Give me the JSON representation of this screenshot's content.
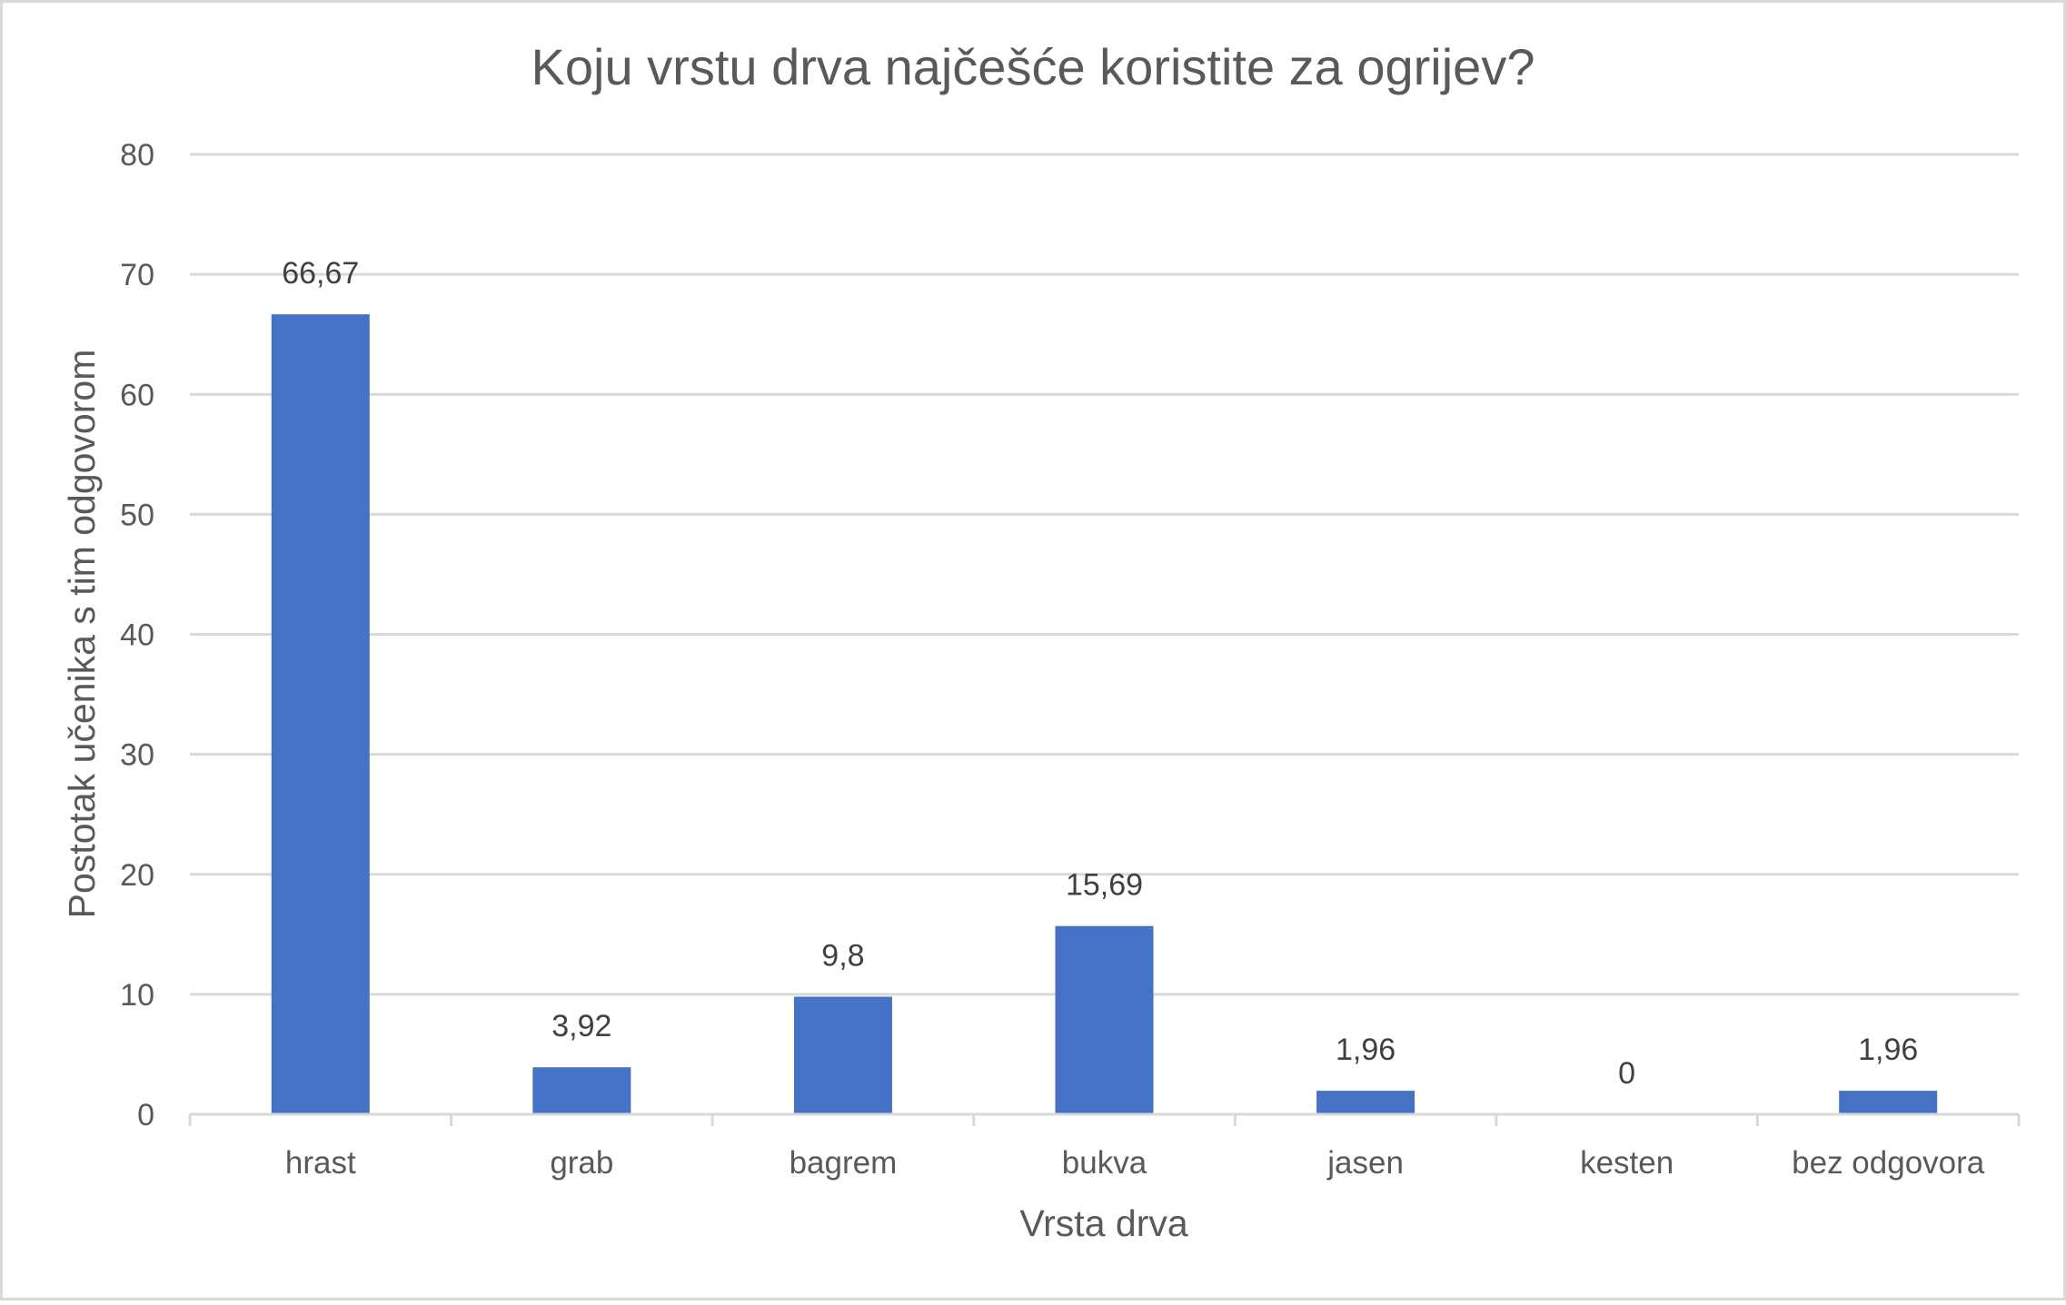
{
  "chart_data": {
    "type": "bar",
    "title": "Koju vrstu drva najčešće koristite za ogrijev?",
    "xlabel": "Vrsta drva",
    "ylabel": "Postotak učenika s tim odgovorom",
    "categories": [
      "hrast",
      "grab",
      "bagrem",
      "bukva",
      "jasen",
      "kesten",
      "bez odgovora"
    ],
    "values": [
      66.67,
      3.92,
      9.8,
      15.69,
      1.96,
      0,
      1.96
    ],
    "value_labels": [
      "66,67",
      "3,92",
      "9,8",
      "15,69",
      "1,96",
      "0",
      "1,96"
    ],
    "ylim": [
      0,
      80
    ],
    "yticks": [
      "0",
      "10",
      "20",
      "30",
      "40",
      "50",
      "60",
      "70",
      "80"
    ],
    "grid": true,
    "legend": "none",
    "colors": {
      "bar": "#4472C4",
      "grid": "#D9D9D9",
      "text": "#595959",
      "frame": "#D9D9D9"
    }
  }
}
